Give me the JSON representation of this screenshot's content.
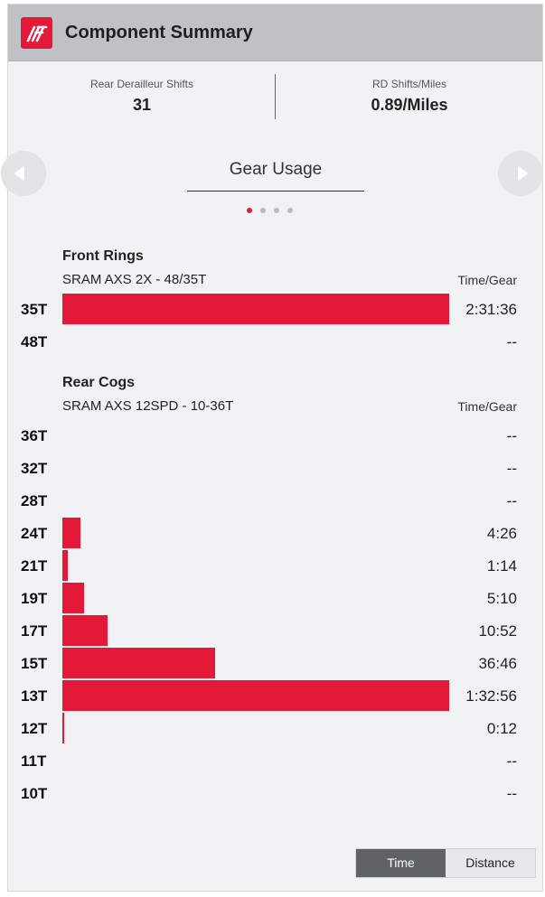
{
  "header": {
    "title": "Component Summary",
    "logo_icon": "brand-logo-icon"
  },
  "stats": [
    {
      "label": "Rear Derailleur Shifts",
      "value": "31"
    },
    {
      "label": "RD Shifts/Miles",
      "value": "0.89/Miles"
    }
  ],
  "carousel": {
    "title": "Gear Usage",
    "prev_icon": "chevron-left-icon",
    "next_icon": "chevron-right-icon",
    "page_count": 4,
    "active_page": 1
  },
  "colors": {
    "accent": "#e31937",
    "toggle_active": "#5f6267"
  },
  "chart_data": [
    {
      "type": "bar",
      "title": "Front Rings",
      "subtitle": "SRAM AXS 2X - 48/35T",
      "value_header": "Time/Gear",
      "categories": [
        "35T",
        "48T"
      ],
      "value_labels": [
        "2:31:36",
        "--"
      ],
      "values_seconds": [
        9096,
        0
      ]
    },
    {
      "type": "bar",
      "title": "Rear Cogs",
      "subtitle": "SRAM AXS 12SPD - 10-36T",
      "value_header": "Time/Gear",
      "categories": [
        "36T",
        "32T",
        "28T",
        "24T",
        "21T",
        "19T",
        "17T",
        "15T",
        "13T",
        "12T",
        "11T",
        "10T"
      ],
      "value_labels": [
        "--",
        "--",
        "--",
        "4:26",
        "1:14",
        "5:10",
        "10:52",
        "36:46",
        "1:32:56",
        "0:12",
        "--",
        "--"
      ],
      "values_seconds": [
        0,
        0,
        0,
        266,
        74,
        310,
        652,
        2206,
        5576,
        12,
        0,
        0
      ]
    }
  ],
  "toggle": {
    "options": [
      "Time",
      "Distance"
    ],
    "selected": "Time"
  }
}
